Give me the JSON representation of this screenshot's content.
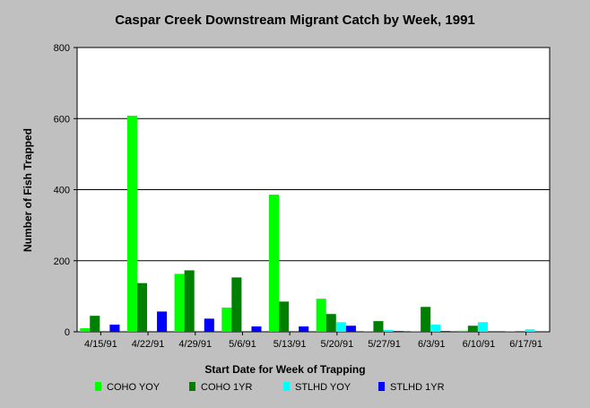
{
  "chart_data": {
    "type": "bar",
    "title": "Caspar Creek Downstream Migrant Catch by Week, 1991",
    "xlabel": "Start Date for Week of Trapping",
    "ylabel": "Number of Fish Trapped",
    "ylim": [
      0,
      800
    ],
    "yticks": [
      0,
      200,
      400,
      600,
      800
    ],
    "grid": true,
    "legend_position": "bottom",
    "categories": [
      "4/15/91",
      "4/22/91",
      "4/29/91",
      "5/6/91",
      "5/13/91",
      "5/20/91",
      "5/27/91",
      "6/3/91",
      "6/10/91",
      "6/17/91"
    ],
    "series": [
      {
        "name": "COHO YOY",
        "color": "#00ff00",
        "values": [
          10,
          608,
          163,
          68,
          386,
          93,
          2,
          2,
          3,
          2
        ]
      },
      {
        "name": "COHO 1YR",
        "color": "#008000",
        "values": [
          45,
          137,
          173,
          153,
          85,
          50,
          30,
          70,
          17,
          0
        ]
      },
      {
        "name": "STLHD YOY",
        "color": "#00ffff",
        "values": [
          0,
          0,
          0,
          0,
          0,
          27,
          5,
          20,
          27,
          7
        ]
      },
      {
        "name": "STLHD 1YR",
        "color": "#0000ff",
        "values": [
          20,
          57,
          37,
          15,
          15,
          17,
          2,
          2,
          0,
          0
        ]
      }
    ]
  }
}
